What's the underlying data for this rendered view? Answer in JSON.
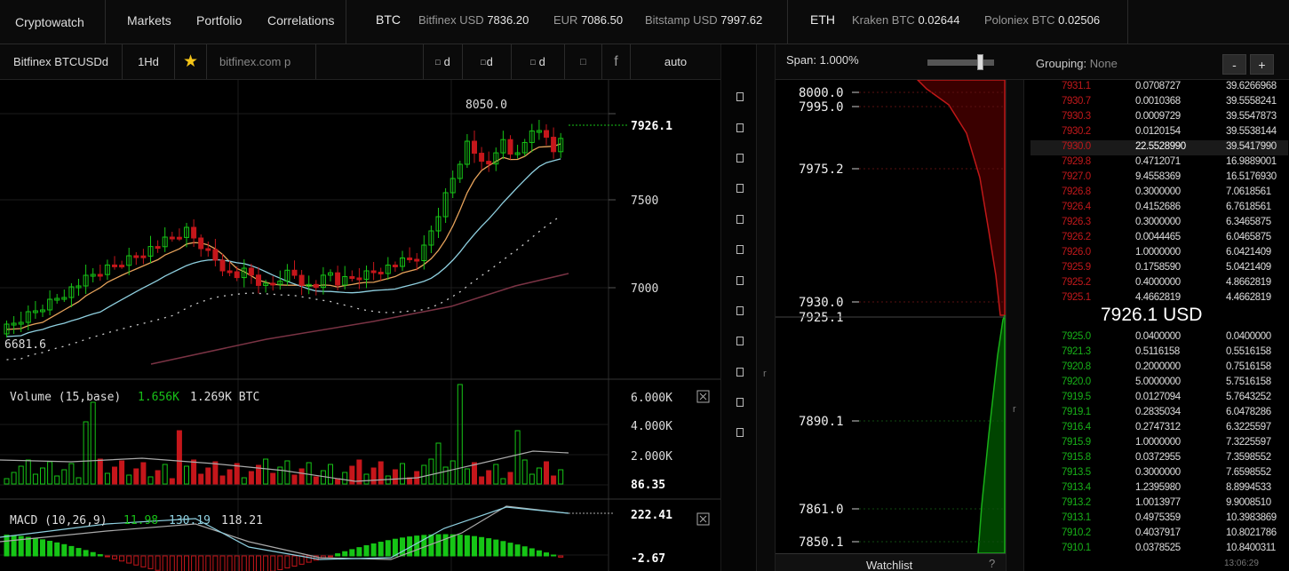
{
  "nav": {
    "brand": "Cryptowatch",
    "links": [
      "Markets",
      "Portfolio",
      "Correlations"
    ]
  },
  "tickers": {
    "btc": {
      "symbol": "BTC",
      "items": [
        {
          "label": "Bitfinex USD",
          "value": "7836.20"
        },
        {
          "label": "EUR",
          "value": "7086.50"
        },
        {
          "label": "Bitstamp USD",
          "value": "7997.62"
        }
      ]
    },
    "eth": {
      "symbol": "ETH",
      "items": [
        {
          "label": "Kraken BTC",
          "value": "0.02644"
        },
        {
          "label": "Poloniex BTC",
          "value": "0.02506"
        }
      ]
    }
  },
  "toolbar": {
    "market": "Bitfinex BTCUSDd",
    "period": "1Hd",
    "star": "★",
    "exchange_link": "bitfinex.com p",
    "btn1": "d",
    "btn2": "d",
    "btn3": "d",
    "fb": "f",
    "scale": "auto"
  },
  "chart_data": {
    "type": "candlestick",
    "price_labels": {
      "high": "8050.0",
      "low": "6681.6",
      "current": "7926.1"
    },
    "yticks": [
      "7500",
      "7000"
    ],
    "volume": {
      "title": "Volume (15,base)",
      "v1": "1.656K",
      "v2": "1.269K BTC",
      "yticks": [
        "6.000K",
        "4.000K",
        "2.000K"
      ],
      "current": "86.35"
    },
    "macd": {
      "title": "MACD (10,26,9)",
      "v1": "11.98",
      "v2": "130.19",
      "v3": "118.21",
      "top": "222.41",
      "bottom": "-2.67"
    },
    "colors": {
      "up": "#16c516",
      "down": "#c5161b",
      "ema_fast": "#e7a35b",
      "ema_slow": "#8fd0e0",
      "sma_long": "#7a3344",
      "dots": "#cccccc"
    }
  },
  "depth": {
    "span_label": "Span:",
    "span_value": "1.000%",
    "price_labels": [
      "8000.0",
      "7995.0",
      "7975.2",
      "7930.0",
      "7925.1",
      "7890.1",
      "7861.0",
      "7850.1"
    ],
    "watchlist": "Watchlist",
    "watchlist_q": "?"
  },
  "book": {
    "grouping_label": "Grouping:",
    "grouping_value": "None",
    "minus": "-",
    "plus": "+",
    "mid": "7926.1 USD",
    "time": "13:06:29",
    "asks": [
      [
        "7931.1",
        "0.0708727",
        "39.6266968"
      ],
      [
        "7930.7",
        "0.0010368",
        "39.5558241"
      ],
      [
        "7930.3",
        "0.0009729",
        "39.5547873"
      ],
      [
        "7930.2",
        "0.0120154",
        "39.5538144"
      ],
      [
        "7930.0",
        "22.5528990",
        "39.5417990"
      ],
      [
        "7929.8",
        "0.4712071",
        "16.9889001"
      ],
      [
        "7927.0",
        "9.4558369",
        "16.5176930"
      ],
      [
        "7926.8",
        "0.3000000",
        "7.0618561"
      ],
      [
        "7926.4",
        "0.4152686",
        "6.7618561"
      ],
      [
        "7926.3",
        "0.3000000",
        "6.3465875"
      ],
      [
        "7926.2",
        "0.0044465",
        "6.0465875"
      ],
      [
        "7926.0",
        "1.0000000",
        "6.0421409"
      ],
      [
        "7925.9",
        "0.1758590",
        "5.0421409"
      ],
      [
        "7925.2",
        "0.4000000",
        "4.8662819"
      ],
      [
        "7925.1",
        "4.4662819",
        "4.4662819"
      ]
    ],
    "bids": [
      [
        "7925.0",
        "0.0400000",
        "0.0400000"
      ],
      [
        "7921.3",
        "0.5116158",
        "0.5516158"
      ],
      [
        "7920.8",
        "0.2000000",
        "0.7516158"
      ],
      [
        "7920.0",
        "5.0000000",
        "5.7516158"
      ],
      [
        "7919.5",
        "0.0127094",
        "5.7643252"
      ],
      [
        "7919.1",
        "0.2835034",
        "6.0478286"
      ],
      [
        "7916.4",
        "0.2747312",
        "6.3225597"
      ],
      [
        "7915.9",
        "1.0000000",
        "7.3225597"
      ],
      [
        "7915.8",
        "0.0372955",
        "7.3598552"
      ],
      [
        "7913.5",
        "0.3000000",
        "7.6598552"
      ],
      [
        "7913.4",
        "1.2395980",
        "8.8994533"
      ],
      [
        "7913.2",
        "1.0013977",
        "9.9008510"
      ],
      [
        "7913.1",
        "0.4975359",
        "10.3983869"
      ],
      [
        "7910.2",
        "0.4037917",
        "10.8021786"
      ],
      [
        "7910.1",
        "0.0378525",
        "10.8400311"
      ]
    ]
  },
  "sidebar": {
    "resize_glyph": "r",
    "box_glyph": "□"
  }
}
